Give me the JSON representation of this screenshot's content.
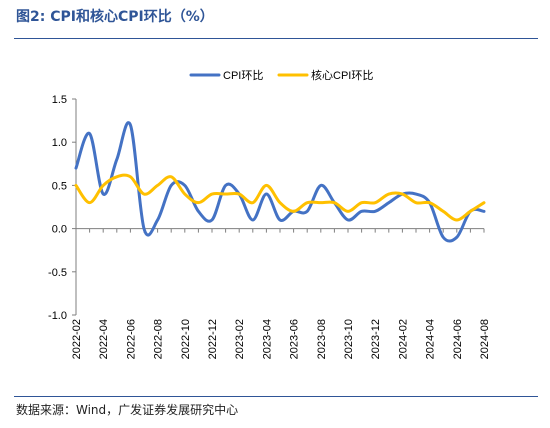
{
  "figure": {
    "title": "图2:  CPI和核心CPI环比（%）",
    "source": "数据来源：Wind，广发证券发展研究中心"
  },
  "chart_data": {
    "type": "line",
    "x": [
      "2022-02",
      "2022-03",
      "2022-04",
      "2022-05",
      "2022-06",
      "2022-07",
      "2022-08",
      "2022-09",
      "2022-10",
      "2022-11",
      "2022-12",
      "2023-01",
      "2023-02",
      "2023-03",
      "2023-04",
      "2023-05",
      "2023-06",
      "2023-07",
      "2023-08",
      "2023-09",
      "2023-10",
      "2023-11",
      "2023-12",
      "2024-01",
      "2024-02",
      "2024-03",
      "2024-04",
      "2024-05",
      "2024-06",
      "2024-07",
      "2024-08"
    ],
    "x_tick_labels": [
      "2022-02",
      "2022-04",
      "2022-06",
      "2022-08",
      "2022-10",
      "2022-12",
      "2023-02",
      "2023-04",
      "2023-06",
      "2023-08",
      "2023-10",
      "2023-12",
      "2024-02",
      "2024-04",
      "2024-06",
      "2024-08"
    ],
    "series": [
      {
        "name": "CPI环比",
        "color": "#4472c4",
        "values": [
          0.7,
          1.1,
          0.4,
          0.8,
          1.2,
          -0.0,
          0.1,
          0.5,
          0.5,
          0.2,
          0.1,
          0.5,
          0.4,
          0.1,
          0.4,
          0.1,
          0.2,
          0.2,
          0.5,
          0.3,
          0.1,
          0.2,
          0.2,
          0.3,
          0.4,
          0.4,
          0.3,
          -0.1,
          -0.1,
          0.2,
          0.2
        ]
      },
      {
        "name": "核心CPI环比",
        "color": "#ffc000",
        "values": [
          0.5,
          0.3,
          0.5,
          0.6,
          0.6,
          0.4,
          0.5,
          0.6,
          0.4,
          0.3,
          0.4,
          0.4,
          0.4,
          0.3,
          0.5,
          0.3,
          0.2,
          0.3,
          0.3,
          0.3,
          0.2,
          0.3,
          0.3,
          0.4,
          0.4,
          0.3,
          0.3,
          0.2,
          0.1,
          0.2,
          0.3
        ]
      }
    ],
    "y_ticks": [
      "1.5",
      "1.0",
      "0.5",
      "0.0",
      "-0.5",
      "-1.0"
    ],
    "ylim": [
      -1.0,
      1.5
    ],
    "legend_position": "top-center",
    "grid": false
  }
}
